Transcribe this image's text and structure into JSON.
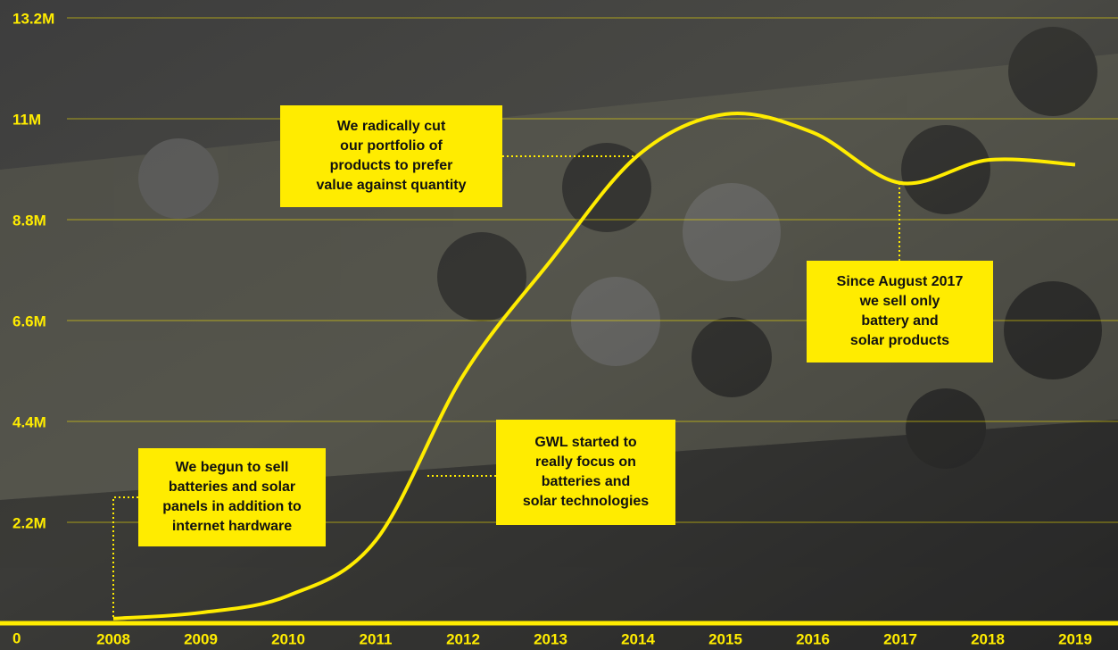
{
  "chart_data": {
    "type": "line",
    "categories": [
      "2008",
      "2009",
      "2010",
      "2011",
      "2012",
      "2013",
      "2014",
      "2015",
      "2016",
      "2017",
      "2018",
      "2019"
    ],
    "values": [
      100000,
      230000,
      600000,
      1800000,
      5400000,
      7900000,
      10200000,
      11100000,
      10700000,
      9600000,
      10100000,
      10000000
    ],
    "color": "#ffec00",
    "ylim": [
      0,
      13200000
    ],
    "yticks": [
      0,
      {
        "value": 2200000,
        "label": "2.2M"
      },
      {
        "value": 4400000,
        "label": "4.4M"
      },
      {
        "value": 6600000,
        "label": "6.6M"
      },
      {
        "value": 8800000,
        "label": "8.8M"
      },
      {
        "value": 11000000,
        "label": "11M"
      },
      {
        "value": 13200000,
        "label": "13.2M"
      }
    ],
    "grid": true,
    "annotations": [
      {
        "lines": [
          "We begun to sell",
          "batteries and solar",
          "panels in addition to",
          "internet hardware"
        ]
      },
      {
        "lines": [
          "GWL started to",
          "really focus on",
          "batteries and",
          "solar technologies"
        ]
      },
      {
        "lines": [
          "We radically cut",
          "our portfolio of",
          "products to prefer",
          "value against quantity"
        ]
      },
      {
        "lines": [
          "Since August 2017",
          "we sell only",
          "battery and",
          "solar products"
        ]
      }
    ]
  }
}
